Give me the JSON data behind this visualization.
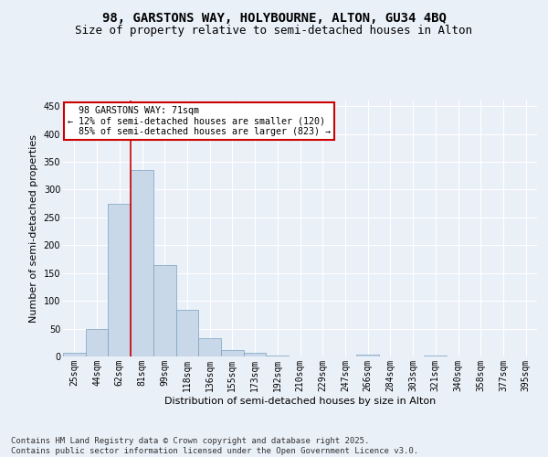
{
  "title1": "98, GARSTONS WAY, HOLYBOURNE, ALTON, GU34 4BQ",
  "title2": "Size of property relative to semi-detached houses in Alton",
  "xlabel": "Distribution of semi-detached houses by size in Alton",
  "ylabel": "Number of semi-detached properties",
  "footnote": "Contains HM Land Registry data © Crown copyright and database right 2025.\nContains public sector information licensed under the Open Government Licence v3.0.",
  "categories": [
    "25sqm",
    "44sqm",
    "62sqm",
    "81sqm",
    "99sqm",
    "118sqm",
    "136sqm",
    "155sqm",
    "173sqm",
    "192sqm",
    "210sqm",
    "229sqm",
    "247sqm",
    "266sqm",
    "284sqm",
    "303sqm",
    "321sqm",
    "340sqm",
    "358sqm",
    "377sqm",
    "395sqm"
  ],
  "values": [
    7,
    50,
    275,
    335,
    165,
    83,
    33,
    12,
    6,
    1,
    0,
    0,
    0,
    4,
    0,
    0,
    2,
    0,
    0,
    0,
    0
  ],
  "bar_color": "#c8d8e8",
  "bar_edge_color": "#7aa0c0",
  "property_label": "98 GARSTONS WAY: 71sqm",
  "pct_smaller": 12,
  "pct_smaller_count": 120,
  "pct_larger": 85,
  "pct_larger_count": 823,
  "vline_color": "#cc0000",
  "vline_x": 2.5,
  "ylim": [
    0,
    460
  ],
  "yticks": [
    0,
    50,
    100,
    150,
    200,
    250,
    300,
    350,
    400,
    450
  ],
  "bg_color": "#eaf0f8",
  "plot_bg_color": "#eaf0f8",
  "annotation_box_color": "#ffffff",
  "annotation_box_edge_color": "#cc0000",
  "title1_fontsize": 10,
  "title2_fontsize": 9,
  "axis_label_fontsize": 8,
  "tick_fontsize": 7,
  "footnote_fontsize": 6.5
}
